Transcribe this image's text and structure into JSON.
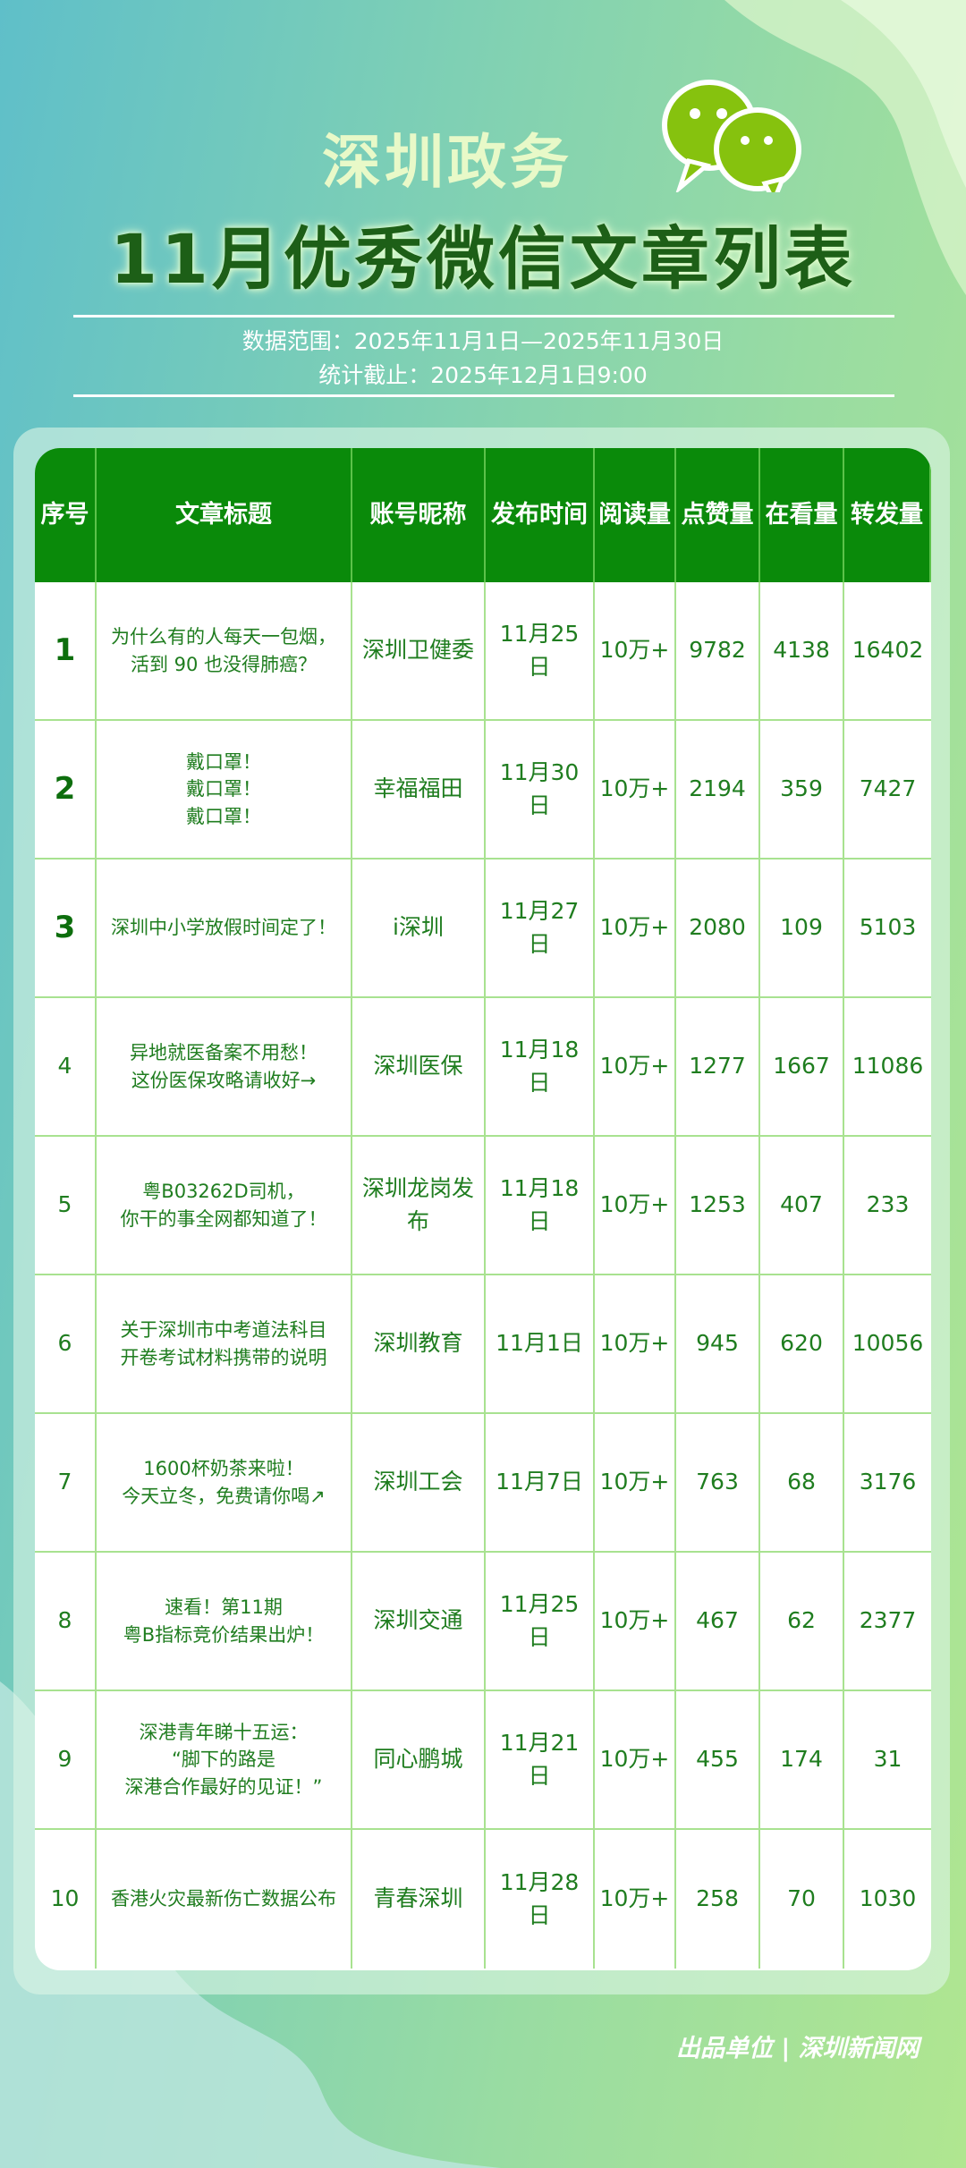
{
  "header": {
    "org": "深圳政务",
    "title": "11月优秀微信文章列表",
    "range": "数据范围：2025年11月1日—2025年11月30日",
    "cutoff": "统计截止：2025年12月1日9:00"
  },
  "icons": {
    "logo": "wechat-icon"
  },
  "colors": {
    "header_bg": "#0a8a0a",
    "text": "#1f7d1f",
    "grid": "#a8e290"
  },
  "table": {
    "columns": [
      "序号",
      "文章标题",
      "账号昵称",
      "发布时间",
      "阅读量",
      "点赞量",
      "在看量",
      "转发量"
    ],
    "rows": [
      [
        "1",
        "为什么有的人每天一包烟，\n活到 90 也没得肺癌？",
        "深圳卫健委",
        "11月25日",
        "10万+",
        "9782",
        "4138",
        "16402"
      ],
      [
        "2",
        "戴口罩！\n戴口罩！\n戴口罩！",
        "幸福福田",
        "11月30日",
        "10万+",
        "2194",
        "359",
        "7427"
      ],
      [
        "3",
        "深圳中小学放假时间定了！",
        "i深圳",
        "11月27日",
        "10万+",
        "2080",
        "109",
        "5103"
      ],
      [
        "4",
        "异地就医备案不用愁！\n这份医保攻略请收好→",
        "深圳医保",
        "11月18日",
        "10万+",
        "1277",
        "1667",
        "11086"
      ],
      [
        "5",
        "粤B03262D司机，\n你干的事全网都知道了！",
        "深圳龙岗发布",
        "11月18日",
        "10万+",
        "1253",
        "407",
        "233"
      ],
      [
        "6",
        "关于深圳市中考道法科目\n开卷考试材料携带的说明",
        "深圳教育",
        "11月1日",
        "10万+",
        "945",
        "620",
        "10056"
      ],
      [
        "7",
        "1600杯奶茶来啦！\n今天立冬，免费请你喝↗",
        "深圳工会",
        "11月7日",
        "10万+",
        "763",
        "68",
        "3176"
      ],
      [
        "8",
        "速看！第11期\n粤B指标竞价结果出炉！",
        "深圳交通",
        "11月25日",
        "10万+",
        "467",
        "62",
        "2377"
      ],
      [
        "9",
        "深港青年睇十五运：\n“脚下的路是\n深港合作最好的见证！”",
        "同心鹏城",
        "11月21日",
        "10万+",
        "455",
        "174",
        "31"
      ],
      [
        "10",
        "香港火灾最新伤亡数据公布",
        "青春深圳",
        "11月28日",
        "10万+",
        "258",
        "70",
        "1030"
      ]
    ]
  },
  "footer": "出品单位 | 深圳新闻网"
}
